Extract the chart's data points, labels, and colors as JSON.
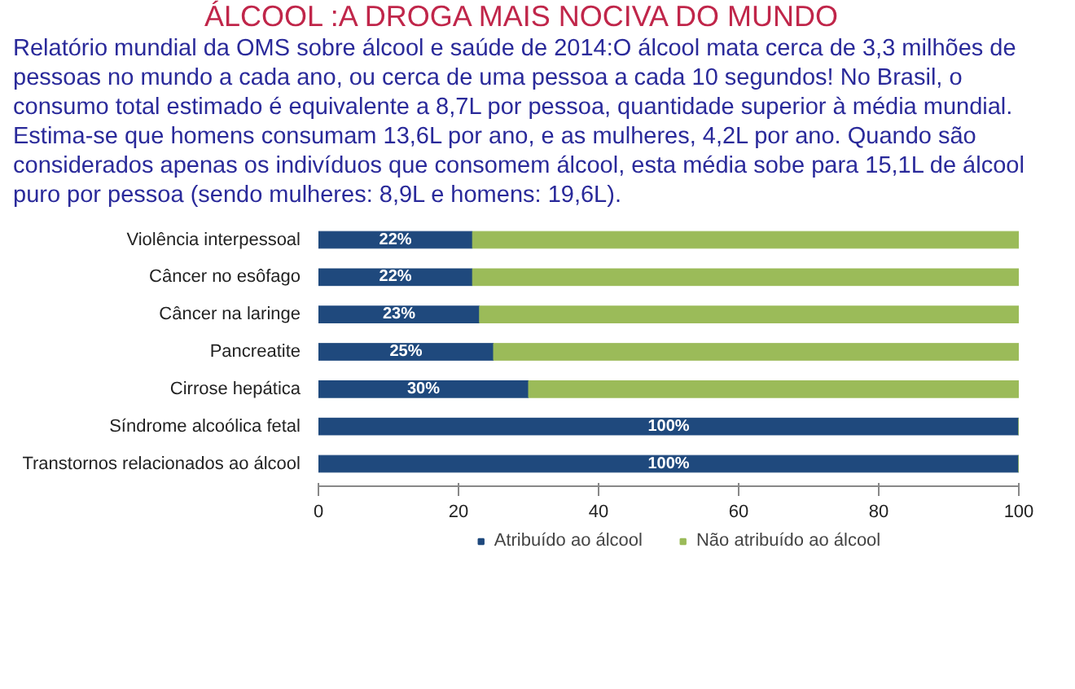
{
  "chart_data": {
    "type": "bar",
    "orientation": "horizontal",
    "stacked": true,
    "title": "ÁLCOOL :A DROGA MAIS NOCIVA DO MUNDO",
    "subtitle": "Relatório mundial da OMS sobre álcool e saúde de 2014:O álcool mata cerca de 3,3 milhões de pessoas no mundo a cada ano, ou cerca de uma pessoa a cada 10 segundos! No Brasil, o consumo total estimado é equivalente a 8,7L por pessoa, quantidade superior à média mundial. Estima-se que homens consumam 13,6L por ano, e as mulheres, 4,2L por ano. Quando são considerados apenas os indivíduos que consomem álcool, esta média sobe para 15,1L de álcool puro por pessoa (sendo mulheres: 8,9L e homens: 19,6L).",
    "categories": [
      "Violência interpessoal",
      "Câncer no esôfago",
      "Câncer na laringe",
      "Pancreatite",
      "Cirrose hepática",
      "Síndrome alcoólica fetal",
      "Transtornos relacionados ao álcool"
    ],
    "series": [
      {
        "name": "Atribuído ao álcool",
        "color": "#1f497d",
        "values": [
          22,
          22,
          23,
          25,
          30,
          100,
          100
        ],
        "value_labels": [
          "22%",
          "22%",
          "23%",
          "25%",
          "30%",
          "100%",
          "100%"
        ]
      },
      {
        "name": "Não atribuído ao álcool",
        "color": "#9bbb59",
        "values": [
          78,
          78,
          77,
          75,
          70,
          0,
          0
        ]
      }
    ],
    "xlim": [
      0,
      100
    ],
    "xticks": [
      0,
      20,
      40,
      60,
      80,
      100
    ],
    "grid": false,
    "legend": "bottom"
  }
}
